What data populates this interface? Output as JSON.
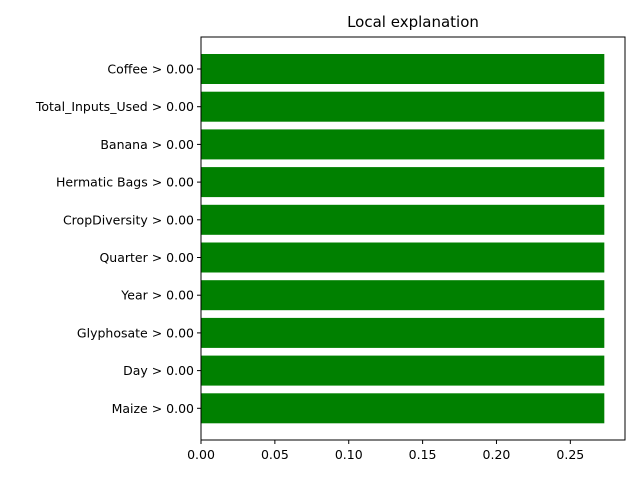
{
  "chart_data": {
    "type": "bar",
    "orientation": "horizontal",
    "title": "Local explanation",
    "xlabel": "",
    "ylabel": "",
    "categories": [
      "Coffee > 0.00",
      "Total_Inputs_Used > 0.00",
      "Banana > 0.00",
      "Hermatic Bags > 0.00",
      "CropDiversity > 0.00",
      "Quarter > 0.00",
      "Year > 0.00",
      "Glyphosate > 0.00",
      "Day > 0.00",
      "Maize > 0.00"
    ],
    "values": [
      0.273,
      0.273,
      0.273,
      0.273,
      0.273,
      0.273,
      0.273,
      0.273,
      0.273,
      0.273
    ],
    "xlim": [
      0,
      0.287
    ],
    "xticks": [
      "0.00",
      "0.05",
      "0.10",
      "0.15",
      "0.20",
      "0.25"
    ],
    "bar_color": "#008000",
    "grid": false,
    "legend": "none"
  }
}
